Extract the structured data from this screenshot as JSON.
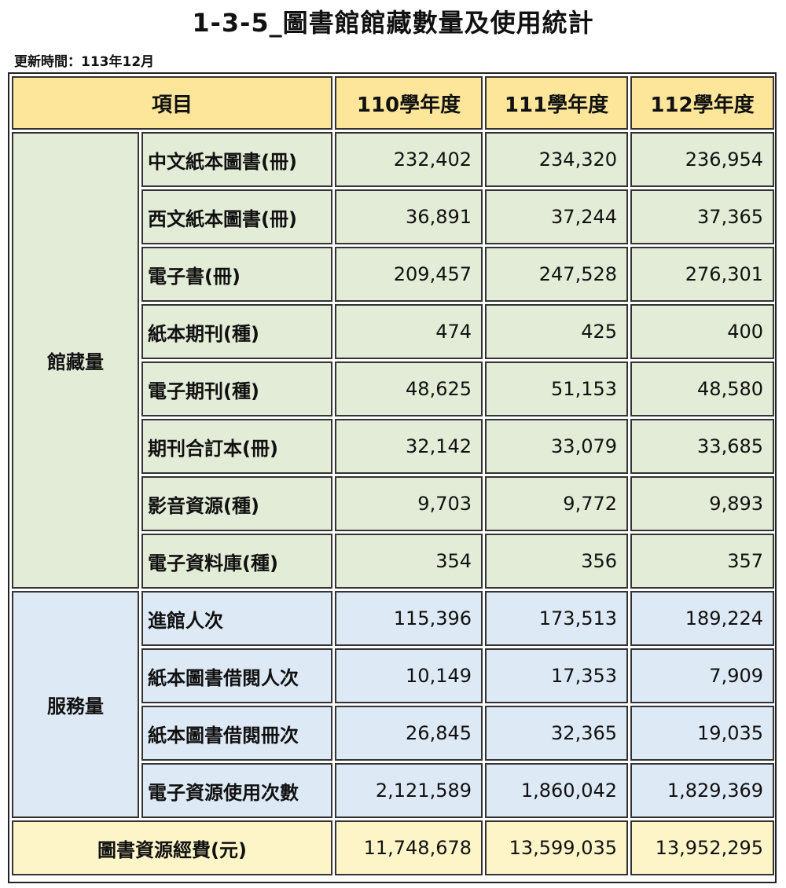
{
  "title": "1-3-5_圖書館館藏數量及使用統計",
  "updated": "更新時間：113年12月",
  "header": {
    "item": "項目",
    "years": [
      "110學年度",
      "111學年度",
      "112學年度"
    ]
  },
  "collection": {
    "category": "館藏量",
    "rows": [
      {
        "label": "中文紙本圖書(冊)",
        "values": [
          "232,402",
          "234,320",
          "236,954"
        ]
      },
      {
        "label": "西文紙本圖書(冊)",
        "values": [
          "36,891",
          "37,244",
          "37,365"
        ]
      },
      {
        "label": "電子書(冊)",
        "values": [
          "209,457",
          "247,528",
          "276,301"
        ]
      },
      {
        "label": "紙本期刊(種)",
        "values": [
          "474",
          "425",
          "400"
        ]
      },
      {
        "label": "電子期刊(種)",
        "values": [
          "48,625",
          "51,153",
          "48,580"
        ]
      },
      {
        "label": "期刊合訂本(冊)",
        "values": [
          "32,142",
          "33,079",
          "33,685"
        ]
      },
      {
        "label": "影音資源(種)",
        "values": [
          "9,703",
          "9,772",
          "9,893"
        ]
      },
      {
        "label": "電子資料庫(種)",
        "values": [
          "354",
          "356",
          "357"
        ]
      }
    ]
  },
  "service": {
    "category": "服務量",
    "rows": [
      {
        "label": "進館人次",
        "values": [
          "115,396",
          "173,513",
          "189,224"
        ]
      },
      {
        "label": "紙本圖書借閱人次",
        "values": [
          "10,149",
          "17,353",
          "7,909"
        ]
      },
      {
        "label": "紙本圖書借閱冊次",
        "values": [
          "26,845",
          "32,365",
          "19,035"
        ]
      },
      {
        "label": "電子資源使用次數",
        "values": [
          "2,121,589",
          "1,860,042",
          "1,829,369"
        ]
      }
    ]
  },
  "budget": {
    "label": "圖書資源經費(元)",
    "values": [
      "11,748,678",
      "13,599,035",
      "13,952,295"
    ]
  }
}
